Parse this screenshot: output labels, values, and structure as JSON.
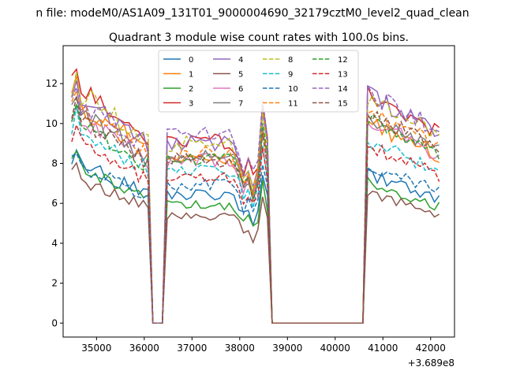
{
  "suptitle": "n file: modeM0/AS1A09_131T01_9000004690_32179cztM0_level2_quad_clean",
  "chart_data": {
    "type": "line",
    "title": "Quadrant 3 module wise count rates with 100.0s bins.",
    "xlabel": "",
    "ylabel": "",
    "x_offset_label": "+3.689e8",
    "xlim": [
      34300,
      42500
    ],
    "ylim": [
      -0.7,
      13.9
    ],
    "xticks": [
      35000,
      36000,
      37000,
      38000,
      39000,
      40000,
      41000,
      42000
    ],
    "yticks": [
      0,
      2,
      4,
      6,
      8,
      10,
      12
    ],
    "grid": false,
    "legend": {
      "placement": "top-center",
      "columns": 4
    },
    "segments": [
      {
        "x_start": 34480,
        "x_end": 36080,
        "x_step": 100
      },
      {
        "x_start": 36180,
        "x_end": 36380,
        "x_step": 100,
        "value": 0
      },
      {
        "x_start": 36480,
        "x_end": 38580,
        "x_step": 100
      },
      {
        "x_start": 38680,
        "x_end": 40580,
        "x_step": 100,
        "value": 0
      },
      {
        "x_start": 40680,
        "x_end": 42180,
        "x_step": 100
      }
    ],
    "series": [
      {
        "name": "0",
        "color": "#1f77b4",
        "dashed": false,
        "levels": [
          8.2,
          6.3,
          6.9
        ]
      },
      {
        "name": "1",
        "color": "#ff7f0e",
        "dashed": false,
        "levels": [
          11.2,
          8.0,
          9.3
        ]
      },
      {
        "name": "2",
        "color": "#2ca02c",
        "dashed": false,
        "levels": [
          8.0,
          5.8,
          6.5
        ]
      },
      {
        "name": "3",
        "color": "#d62728",
        "dashed": false,
        "levels": [
          12.0,
          8.9,
          10.6
        ]
      },
      {
        "name": "4",
        "color": "#9467bd",
        "dashed": false,
        "levels": [
          11.5,
          8.8,
          10.6
        ]
      },
      {
        "name": "5",
        "color": "#8c564b",
        "dashed": false,
        "levels": [
          7.4,
          5.3,
          6.0
        ]
      },
      {
        "name": "6",
        "color": "#e377c2",
        "dashed": false,
        "levels": [
          10.5,
          8.0,
          9.4
        ]
      },
      {
        "name": "7",
        "color": "#7f7f7f",
        "dashed": false,
        "levels": [
          10.8,
          8.2,
          9.6
        ]
      },
      {
        "name": "8",
        "color": "#bcbd22",
        "dashed": true,
        "levels": [
          11.8,
          8.8,
          10.4
        ]
      },
      {
        "name": "9",
        "color": "#17becf",
        "dashed": true,
        "levels": [
          9.8,
          7.5,
          8.5
        ]
      },
      {
        "name": "10",
        "color": "#1f77b4",
        "dashed": true,
        "levels": [
          8.1,
          6.8,
          7.3
        ]
      },
      {
        "name": "11",
        "color": "#ff7f0e",
        "dashed": true,
        "levels": [
          11.0,
          8.3,
          9.9
        ]
      },
      {
        "name": "12",
        "color": "#2ca02c",
        "dashed": true,
        "levels": [
          10.2,
          8.1,
          9.5
        ]
      },
      {
        "name": "13",
        "color": "#d62728",
        "dashed": true,
        "levels": [
          9.2,
          7.2,
          8.2
        ]
      },
      {
        "name": "14",
        "color": "#9467bd",
        "dashed": true,
        "levels": [
          11.3,
          9.2,
          10.7
        ]
      },
      {
        "name": "15",
        "color": "#8c564b",
        "dashed": true,
        "levels": [
          10.4,
          8.0,
          9.7
        ]
      }
    ]
  }
}
